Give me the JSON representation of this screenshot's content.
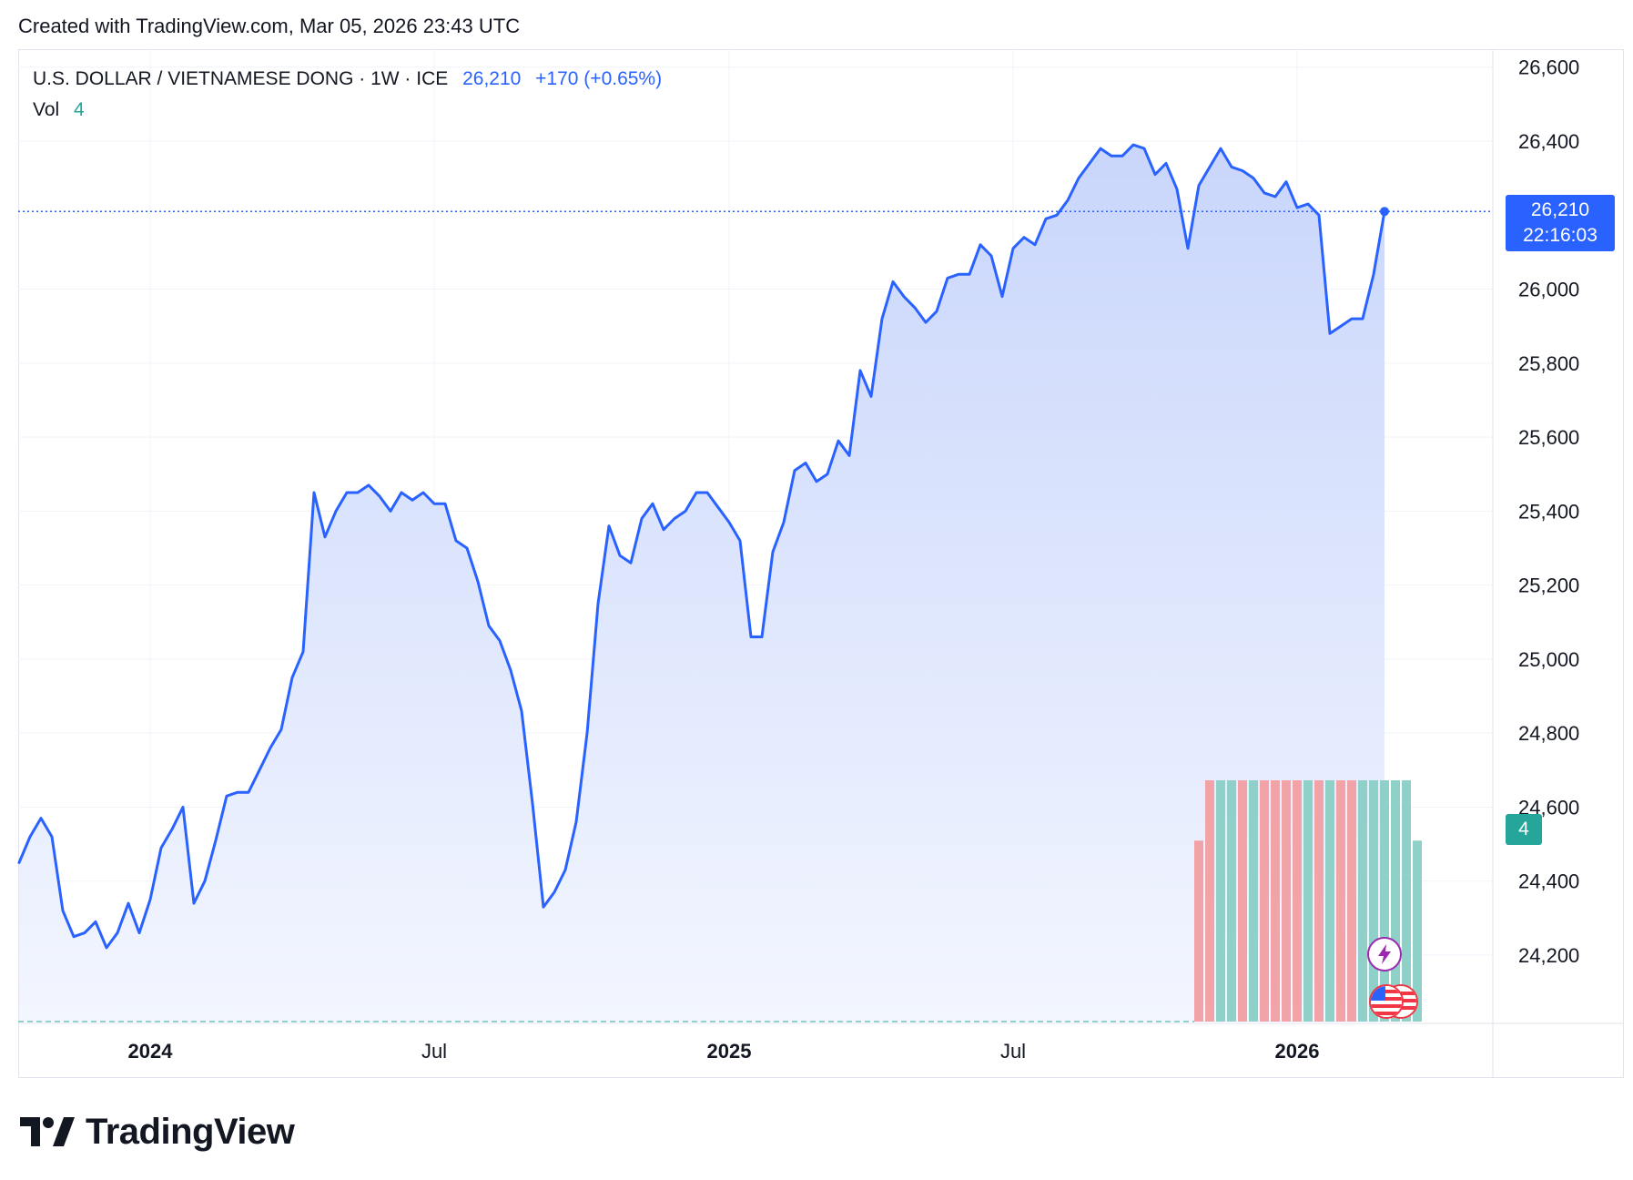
{
  "header": {
    "created_text": "Created with TradingView.com, Mar 05, 2026 23:43 UTC"
  },
  "legend": {
    "symbol_text": "U.S. DOLLAR / VIETNAMESE DONG · 1W · ICE",
    "last_price": "26,210",
    "change": "+170 (+0.65%)",
    "volume_label": "Vol",
    "volume_value": "4"
  },
  "price_badge": {
    "price": "26,210",
    "countdown": "22:16:03"
  },
  "volume_badge": {
    "value": "4"
  },
  "logo": {
    "text": "TradingView"
  },
  "colors": {
    "line": "#2962ff",
    "area_top": "#c9d6fb",
    "area_bottom": "#f3f6ff",
    "volume_up": "#8fd1c9",
    "volume_down": "#f2a3a8",
    "grid": "#f0f3fa",
    "axis_text": "#131722"
  },
  "chart_data": {
    "type": "area",
    "title": "U.S. DOLLAR / VIETNAMESE DONG · 1W · ICE",
    "ylim": [
      24020,
      26640
    ],
    "y_ticks": [
      "26,600",
      "26,400",
      "26,000",
      "25,800",
      "25,600",
      "25,400",
      "25,200",
      "25,000",
      "24,800",
      "24,600",
      "24,400",
      "24,200"
    ],
    "y_tick_values": [
      26600,
      26400,
      26000,
      25800,
      25600,
      25400,
      25200,
      25000,
      24800,
      24600,
      24400,
      24200
    ],
    "x_ticks": [
      {
        "label": "2024",
        "week": 12,
        "bold": true
      },
      {
        "label": "Jul",
        "week": 38,
        "bold": false
      },
      {
        "label": "2025",
        "week": 65,
        "bold": true
      },
      {
        "label": "Jul",
        "week": 91,
        "bold": false
      },
      {
        "label": "2026",
        "week": 117,
        "bold": true
      }
    ],
    "x_range_weeks": [
      0,
      134
    ],
    "last_price": 26210,
    "series": [
      {
        "name": "USD/VND",
        "values": [
          24450,
          24520,
          24570,
          24520,
          24320,
          24250,
          24260,
          24290,
          24220,
          24260,
          24340,
          24260,
          24350,
          24490,
          24540,
          24600,
          24340,
          24400,
          24510,
          24630,
          24640,
          24640,
          24700,
          24760,
          24810,
          24950,
          25020,
          25450,
          25330,
          25400,
          25450,
          25450,
          25470,
          25440,
          25400,
          25450,
          25430,
          25450,
          25420,
          25420,
          25320,
          25300,
          25210,
          25090,
          25050,
          24970,
          24860,
          24610,
          24330,
          24370,
          24430,
          24560,
          24800,
          25150,
          25360,
          25280,
          25260,
          25380,
          25420,
          25350,
          25380,
          25400,
          25450,
          25450,
          25410,
          25370,
          25320,
          25060,
          25060,
          25290,
          25370,
          25510,
          25530,
          25480,
          25500,
          25590,
          25550,
          25780,
          25710,
          25920,
          26020,
          25980,
          25950,
          25910,
          25940,
          26030,
          26040,
          26040,
          26120,
          26090,
          25980,
          26110,
          26140,
          26120,
          26190,
          26200,
          26240,
          26300,
          26340,
          26380,
          26360,
          26360,
          26390,
          26380,
          26310,
          26340,
          26270,
          26110,
          26280,
          26330,
          26380,
          26330,
          26320,
          26300,
          26260,
          26250,
          26290,
          26220,
          26230,
          26200,
          25880,
          25900,
          25920,
          25920,
          26040,
          26210
        ]
      }
    ],
    "volume": {
      "start_week": 108,
      "values": [
        3,
        4,
        4,
        4,
        4,
        4,
        4,
        4,
        4,
        4,
        4,
        4,
        4,
        4,
        4,
        4,
        4,
        4,
        4,
        4,
        3
      ],
      "directions": [
        "down",
        "down",
        "up",
        "up",
        "down",
        "up",
        "down",
        "down",
        "down",
        "down",
        "up",
        "down",
        "up",
        "down",
        "down",
        "up",
        "up",
        "up",
        "up",
        "up",
        "up"
      ],
      "scale_max": 4
    }
  }
}
